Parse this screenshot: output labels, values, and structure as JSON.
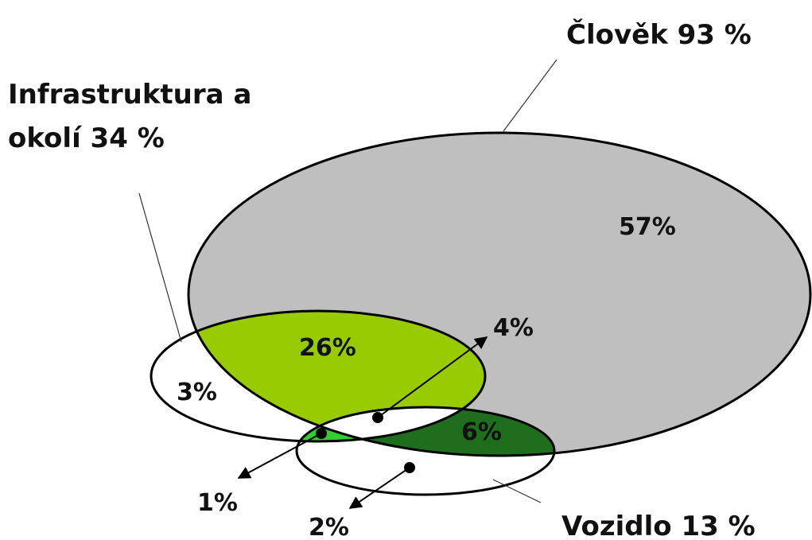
{
  "sets": [
    {
      "label": "Člověk 93 %"
    },
    {
      "label_lines": [
        "Infrastruktura a",
        "okolí 34 %"
      ]
    },
    {
      "label": "Vozidlo 13 %"
    }
  ],
  "regions": [
    {
      "label": "57%"
    },
    {
      "label": "26%"
    },
    {
      "label": "3%"
    },
    {
      "label": "4%"
    },
    {
      "label": "6%"
    },
    {
      "label": "1%"
    },
    {
      "label": "2%"
    }
  ]
}
